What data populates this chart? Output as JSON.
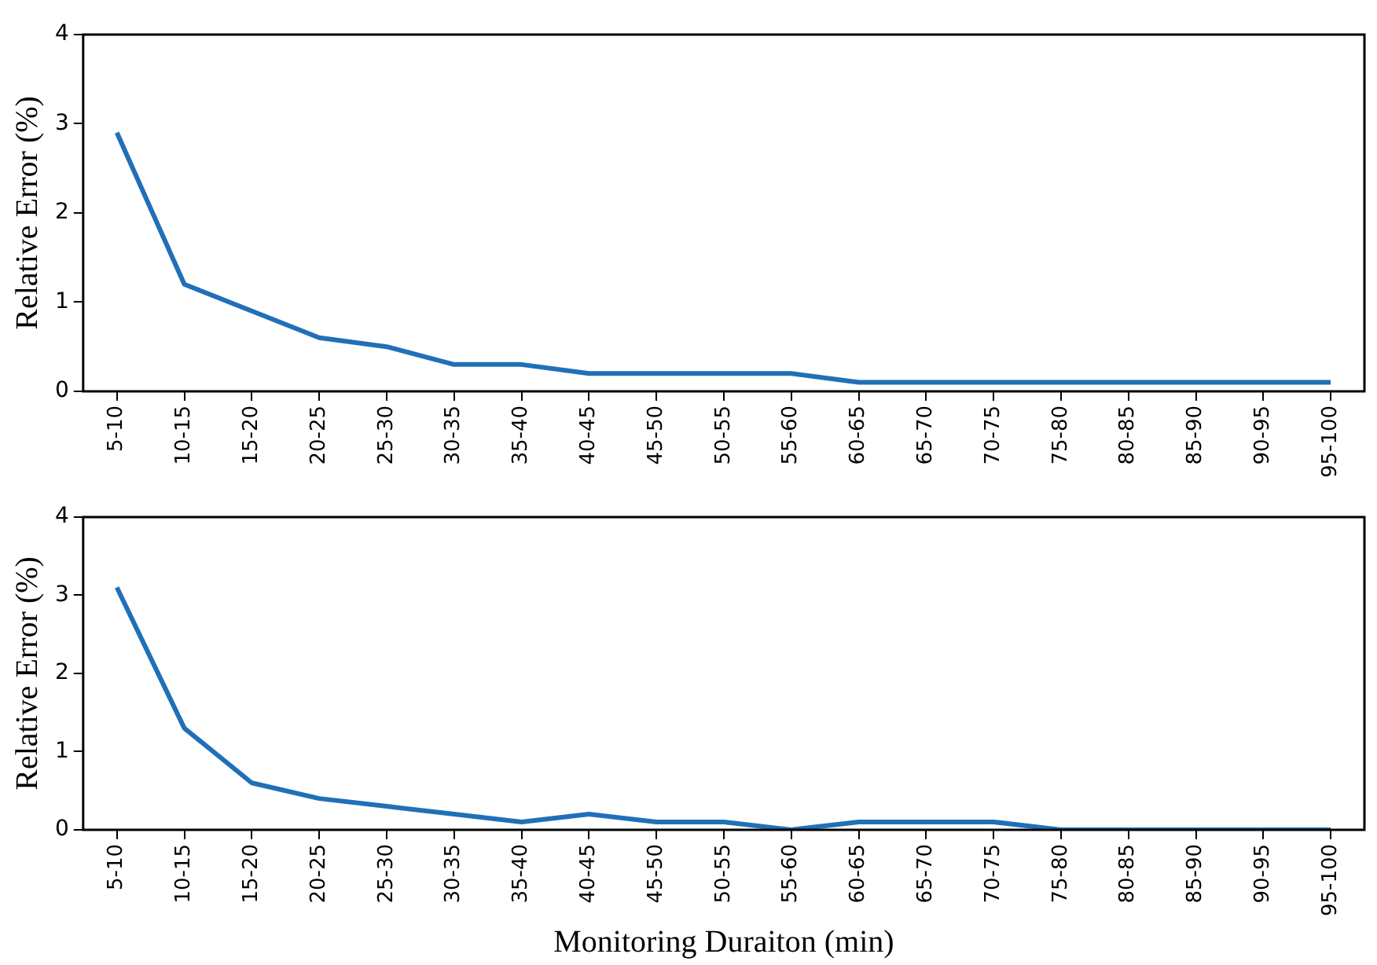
{
  "chart_data": [
    {
      "type": "line",
      "ylabel": "Relative Error (%)",
      "categories": [
        "5-10",
        "10-15",
        "15-20",
        "20-25",
        "25-30",
        "30-35",
        "35-40",
        "40-45",
        "45-50",
        "50-55",
        "55-60",
        "60-65",
        "65-70",
        "70-75",
        "75-80",
        "80-85",
        "85-90",
        "90-95",
        "95-100"
      ],
      "series": [
        {
          "color": "#2070b8",
          "values": [
            2.9,
            1.2,
            0.9,
            0.6,
            0.5,
            0.3,
            0.3,
            0.2,
            0.2,
            0.2,
            0.2,
            0.1,
            0.1,
            0.1,
            0.1,
            0.1,
            0.1,
            0.1,
            0.1
          ]
        }
      ],
      "ylim": [
        0,
        4
      ],
      "yticks": [
        0,
        1,
        2,
        3,
        4
      ],
      "grid": false,
      "legend": false,
      "marker": "none",
      "line_style": "solid"
    },
    {
      "type": "line",
      "ylabel": "Relative Error (%)",
      "xlabel": "Monitoring Duraiton (min)",
      "categories": [
        "5-10",
        "10-15",
        "15-20",
        "20-25",
        "25-30",
        "30-35",
        "35-40",
        "40-45",
        "45-50",
        "50-55",
        "55-60",
        "60-65",
        "65-70",
        "70-75",
        "75-80",
        "80-85",
        "85-90",
        "90-95",
        "95-100"
      ],
      "series": [
        {
          "color": "#2070b8",
          "values": [
            3.1,
            1.3,
            0.6,
            0.4,
            0.3,
            0.2,
            0.1,
            0.2,
            0.1,
            0.1,
            0.0,
            0.1,
            0.1,
            0.1,
            0,
            0,
            0,
            0,
            0
          ]
        }
      ],
      "ylim": [
        0,
        4
      ],
      "yticks": [
        0,
        1,
        2,
        3,
        4
      ],
      "grid": false,
      "legend": false,
      "marker": "none",
      "line_style": "solid"
    }
  ]
}
